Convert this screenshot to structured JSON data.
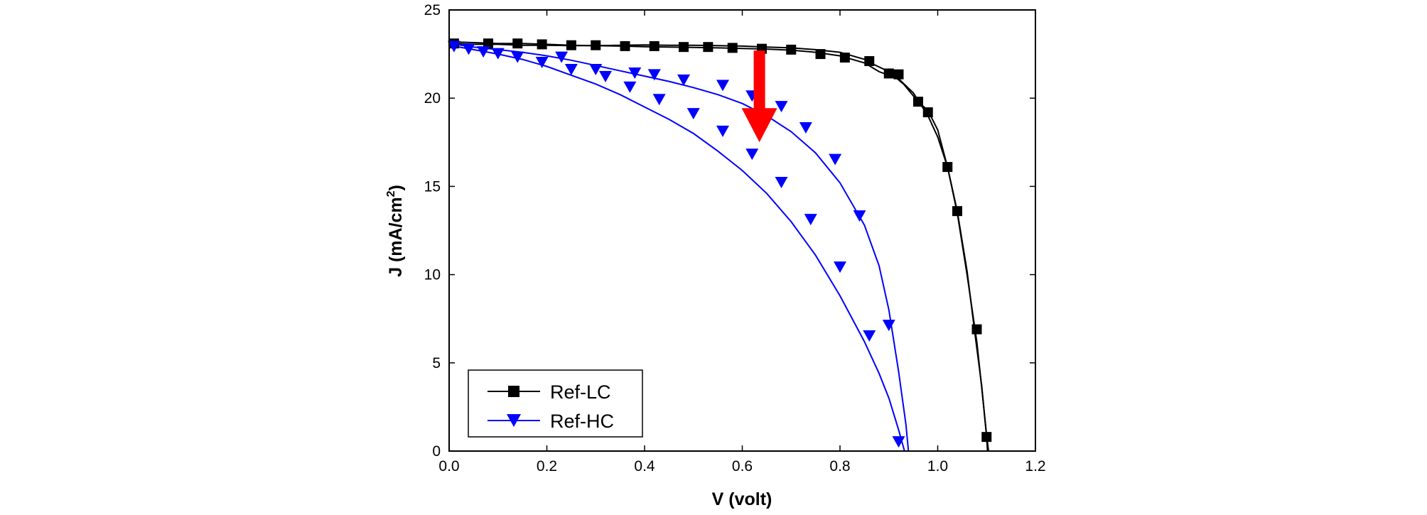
{
  "chart_data": {
    "type": "line",
    "xlabel": "V (volt)",
    "ylabel": "J (mA/cm",
    "ylabel_sup": "2",
    "ylabel_end": ")",
    "xlim": [
      0.0,
      1.2
    ],
    "ylim": [
      0,
      25
    ],
    "x_ticks": [
      "0.0",
      "0.2",
      "0.4",
      "0.6",
      "0.8",
      "1.0",
      "1.2"
    ],
    "y_ticks": [
      "0",
      "5",
      "10",
      "15",
      "20",
      "25"
    ],
    "grid": false,
    "legend_position": "bottom-left",
    "annotation": {
      "type": "arrow",
      "color": "#ff0000",
      "x": 0.635,
      "y_from": 22.7,
      "y_to": 17.5
    },
    "series": [
      {
        "name": "Ref-LC",
        "color": "#000000",
        "marker": "square",
        "curves": [
          [
            [
              0.0,
              23.2
            ],
            [
              0.05,
              23.15
            ],
            [
              0.1,
              23.1
            ],
            [
              0.15,
              23.1
            ],
            [
              0.2,
              23.05
            ],
            [
              0.25,
              23.0
            ],
            [
              0.3,
              22.98
            ],
            [
              0.35,
              22.95
            ],
            [
              0.4,
              22.92
            ],
            [
              0.45,
              22.9
            ],
            [
              0.5,
              22.88
            ],
            [
              0.55,
              22.85
            ],
            [
              0.6,
              22.82
            ],
            [
              0.65,
              22.78
            ],
            [
              0.7,
              22.72
            ],
            [
              0.75,
              22.6
            ],
            [
              0.8,
              22.4
            ],
            [
              0.85,
              22.0
            ],
            [
              0.88,
              21.5
            ],
            [
              0.9,
              21.3
            ],
            [
              0.92,
              21.1
            ],
            [
              0.95,
              20.3
            ],
            [
              0.98,
              19.0
            ],
            [
              1.0,
              17.8
            ],
            [
              1.02,
              16.1
            ],
            [
              1.04,
              13.5
            ],
            [
              1.06,
              10.0
            ],
            [
              1.08,
              6.2
            ],
            [
              1.09,
              3.6
            ],
            [
              1.1,
              0.9
            ],
            [
              1.104,
              0.0
            ]
          ],
          [
            [
              0.0,
              23.1
            ],
            [
              0.05,
              23.05
            ],
            [
              0.1,
              23.05
            ],
            [
              0.15,
              23.0
            ],
            [
              0.2,
              23.0
            ],
            [
              0.25,
              22.98
            ],
            [
              0.3,
              22.98
            ],
            [
              0.35,
              23.0
            ],
            [
              0.4,
              23.02
            ],
            [
              0.45,
              23.0
            ],
            [
              0.5,
              23.0
            ],
            [
              0.55,
              22.98
            ],
            [
              0.6,
              22.95
            ],
            [
              0.65,
              22.9
            ],
            [
              0.7,
              22.85
            ],
            [
              0.75,
              22.75
            ],
            [
              0.8,
              22.6
            ],
            [
              0.85,
              22.2
            ],
            [
              0.87,
              21.9
            ],
            [
              0.9,
              21.5
            ],
            [
              0.93,
              20.8
            ],
            [
              0.96,
              19.8
            ],
            [
              0.98,
              19.3
            ],
            [
              1.0,
              18.2
            ],
            [
              1.02,
              16.1
            ],
            [
              1.04,
              13.6
            ],
            [
              1.06,
              10.2
            ],
            [
              1.075,
              6.9
            ],
            [
              1.09,
              3.7
            ],
            [
              1.1,
              0.8
            ],
            [
              1.102,
              0.0
            ]
          ]
        ],
        "markers": [
          [
            0.01,
            23.1
          ],
          [
            0.08,
            23.1
          ],
          [
            0.14,
            23.1
          ],
          [
            0.19,
            23.05
          ],
          [
            0.25,
            23.0
          ],
          [
            0.3,
            23.0
          ],
          [
            0.36,
            22.95
          ],
          [
            0.42,
            22.95
          ],
          [
            0.48,
            22.9
          ],
          [
            0.53,
            22.9
          ],
          [
            0.58,
            22.85
          ],
          [
            0.64,
            22.8
          ],
          [
            0.7,
            22.75
          ],
          [
            0.76,
            22.5
          ],
          [
            0.81,
            22.3
          ],
          [
            0.86,
            22.1
          ],
          [
            0.9,
            21.4
          ],
          [
            0.92,
            21.35
          ],
          [
            0.96,
            19.8
          ],
          [
            0.98,
            19.2
          ],
          [
            1.02,
            16.1
          ],
          [
            1.04,
            13.6
          ],
          [
            1.08,
            6.9
          ],
          [
            1.1,
            0.8
          ]
        ]
      },
      {
        "name": "Ref-HC",
        "color": "#0000ff",
        "marker": "triangle-down",
        "curves": [
          [
            [
              0.0,
              23.0
            ],
            [
              0.05,
              22.75
            ],
            [
              0.1,
              22.5
            ],
            [
              0.15,
              22.2
            ],
            [
              0.2,
              21.8
            ],
            [
              0.25,
              21.3
            ],
            [
              0.3,
              20.8
            ],
            [
              0.35,
              20.2
            ],
            [
              0.4,
              19.5
            ],
            [
              0.45,
              18.8
            ],
            [
              0.5,
              18.0
            ],
            [
              0.55,
              17.0
            ],
            [
              0.6,
              15.9
            ],
            [
              0.65,
              14.6
            ],
            [
              0.7,
              13.0
            ],
            [
              0.75,
              11.1
            ],
            [
              0.8,
              8.8
            ],
            [
              0.85,
              6.2
            ],
            [
              0.88,
              4.4
            ],
            [
              0.9,
              3.0
            ],
            [
              0.92,
              1.2
            ],
            [
              0.932,
              0.0
            ]
          ],
          [
            [
              0.0,
              23.1
            ],
            [
              0.05,
              22.9
            ],
            [
              0.1,
              22.75
            ],
            [
              0.15,
              22.6
            ],
            [
              0.2,
              22.4
            ],
            [
              0.25,
              22.15
            ],
            [
              0.3,
              21.85
            ],
            [
              0.35,
              21.55
            ],
            [
              0.4,
              21.25
            ],
            [
              0.45,
              20.95
            ],
            [
              0.5,
              20.6
            ],
            [
              0.55,
              20.2
            ],
            [
              0.6,
              19.7
            ],
            [
              0.65,
              19.0
            ],
            [
              0.7,
              18.1
            ],
            [
              0.75,
              16.9
            ],
            [
              0.8,
              15.2
            ],
            [
              0.85,
              12.8
            ],
            [
              0.88,
              10.5
            ],
            [
              0.9,
              8.0
            ],
            [
              0.92,
              4.5
            ],
            [
              0.935,
              1.5
            ],
            [
              0.94,
              0.0
            ]
          ]
        ],
        "markers": [
          [
            0.01,
            23.0
          ],
          [
            0.04,
            22.85
          ],
          [
            0.07,
            22.7
          ],
          [
            0.1,
            22.6
          ],
          [
            0.14,
            22.4
          ],
          [
            0.19,
            22.1
          ],
          [
            0.23,
            22.4
          ],
          [
            0.25,
            21.7
          ],
          [
            0.3,
            21.7
          ],
          [
            0.32,
            21.3
          ],
          [
            0.38,
            21.5
          ],
          [
            0.37,
            20.7
          ],
          [
            0.42,
            21.4
          ],
          [
            0.43,
            20.0
          ],
          [
            0.48,
            21.1
          ],
          [
            0.5,
            19.2
          ],
          [
            0.56,
            20.8
          ],
          [
            0.56,
            18.2
          ],
          [
            0.62,
            20.2
          ],
          [
            0.62,
            16.9
          ],
          [
            0.68,
            19.6
          ],
          [
            0.68,
            15.3
          ],
          [
            0.73,
            18.4
          ],
          [
            0.74,
            13.2
          ],
          [
            0.79,
            16.6
          ],
          [
            0.8,
            10.5
          ],
          [
            0.84,
            13.4
          ],
          [
            0.86,
            6.6
          ],
          [
            0.9,
            7.2
          ],
          [
            0.92,
            0.6
          ]
        ]
      }
    ]
  }
}
